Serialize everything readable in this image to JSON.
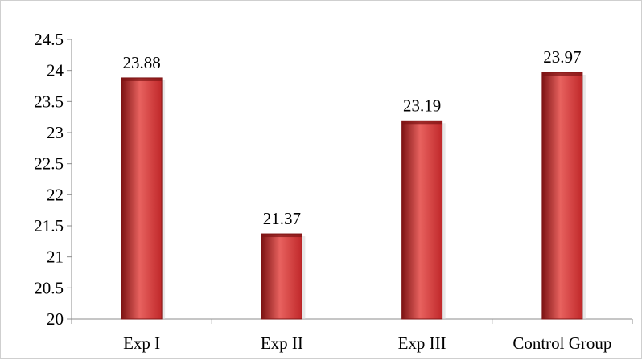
{
  "chart_data": {
    "type": "bar",
    "categories": [
      "Exp I",
      "Exp II",
      "Exp III",
      "Control Group"
    ],
    "values": [
      23.88,
      21.37,
      23.19,
      23.97
    ],
    "data_labels": [
      "23.88",
      "21.37",
      "23.19",
      "23.97"
    ],
    "title": "",
    "xlabel": "",
    "ylabel": "",
    "ylim": [
      20,
      24.5
    ],
    "y_ticks": [
      "20",
      "20.5",
      "21",
      "21.5",
      "22",
      "22.5",
      "23",
      "23.5",
      "24",
      "24.5"
    ],
    "grid": false,
    "legend": "none",
    "bar_color": "#c0282a",
    "bar_highlight_color": "#e8625f",
    "bar_shadow_color": "#7e1414"
  }
}
